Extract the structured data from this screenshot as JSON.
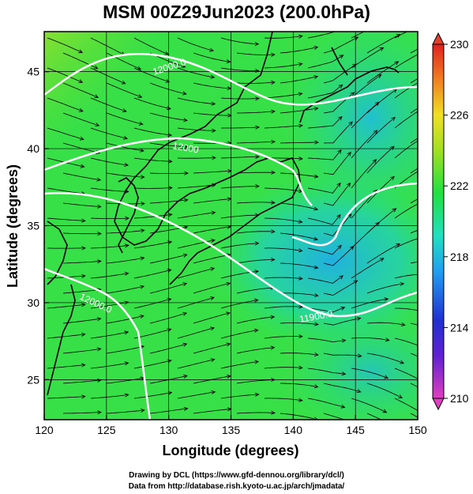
{
  "title": "MSM 00Z29Jun2023 (200.0hPa)",
  "x_axis": {
    "label": "Longitude (degrees)",
    "ticks": [
      120,
      125,
      130,
      135,
      140,
      145,
      150
    ],
    "range": [
      120,
      150
    ]
  },
  "y_axis": {
    "label": "Latitude  (degrees)",
    "ticks": [
      25,
      30,
      35,
      40,
      45
    ],
    "range": [
      22.4,
      47.6
    ]
  },
  "colorbar": {
    "ticks": [
      210,
      214,
      218,
      222,
      226,
      230
    ],
    "range": [
      210,
      230
    ],
    "colors": [
      "#e040c0",
      "#2020d0",
      "#20b0e0",
      "#20e040",
      "#f0e020",
      "#e03020"
    ]
  },
  "contours": [
    {
      "label": "12000.0"
    },
    {
      "label": "12000"
    },
    {
      "label": "11900.0"
    },
    {
      "label": "12000.0"
    }
  ],
  "credits": {
    "line1": "Drawing by DCL (https://www.gfd-dennou.org/library/dcl/)",
    "line2": "Data from http://database.rish.kyoto-u.ac.jp/arch/jmadata/"
  }
}
